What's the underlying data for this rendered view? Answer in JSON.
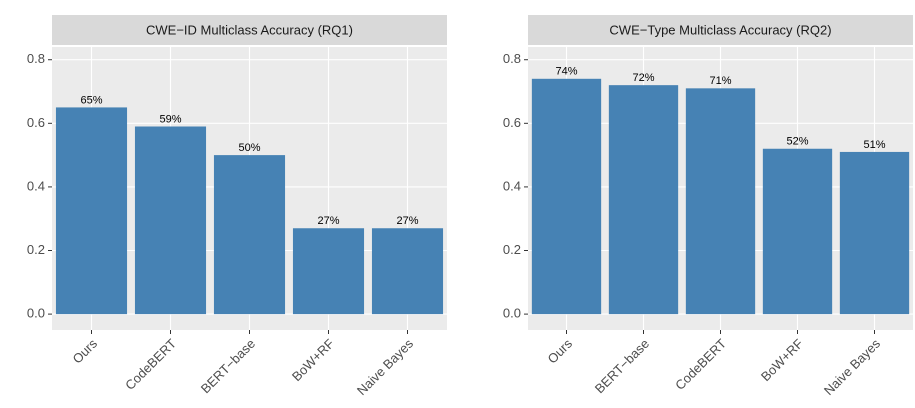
{
  "chart_data": [
    {
      "type": "bar",
      "title": "CWE−ID Multiclass Accuracy (RQ1)",
      "categories": [
        "Ours",
        "CodeBERT",
        "BERT−base",
        "BoW+RF",
        "Naive Bayes"
      ],
      "values": [
        0.65,
        0.59,
        0.5,
        0.27,
        0.27
      ],
      "value_labels": [
        "65%",
        "59%",
        "50%",
        "27%",
        "27%"
      ],
      "color": "#4682b4",
      "ylim": [
        -0.05,
        0.84
      ],
      "yticks": [
        {
          "value": 0,
          "label": "0.0"
        },
        0.2,
        0.4,
        0.6,
        0.8
      ],
      "grid": true
    },
    {
      "type": "bar",
      "title": "CWE−Type Multiclass Accuracy (RQ2)",
      "categories": [
        "Ours",
        "BERT−base",
        "CodeBERT",
        "BoW+RF",
        "Naive Bayes"
      ],
      "values": [
        0.74,
        0.72,
        0.71,
        0.52,
        0.51
      ],
      "value_labels": [
        "74%",
        "72%",
        "71%",
        "52%",
        "51%"
      ],
      "color": "#4682b4",
      "ylim": [
        -0.05,
        0.84
      ],
      "yticks": [
        {
          "value": 0,
          "label": "0.0"
        },
        0.2,
        0.4,
        0.6,
        0.8
      ],
      "grid": true
    }
  ]
}
